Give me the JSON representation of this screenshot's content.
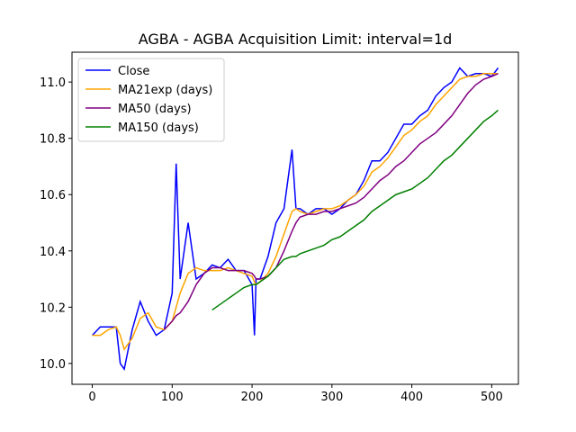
{
  "chart_data": {
    "type": "line",
    "title": "AGBA - AGBA Acquisition Limit: interval=1d",
    "x": [
      0,
      10,
      20,
      30,
      35,
      40,
      50,
      60,
      70,
      80,
      90,
      100,
      105,
      110,
      120,
      130,
      140,
      150,
      160,
      170,
      180,
      190,
      200,
      203,
      205,
      210,
      220,
      230,
      240,
      250,
      255,
      260,
      270,
      280,
      290,
      300,
      310,
      320,
      330,
      340,
      350,
      360,
      370,
      380,
      390,
      400,
      410,
      420,
      430,
      440,
      450,
      460,
      470,
      480,
      490,
      500,
      508
    ],
    "series": [
      {
        "name": "Close",
        "color": "#0000ff",
        "values": [
          10.1,
          10.13,
          10.13,
          10.13,
          10.0,
          9.98,
          10.12,
          10.22,
          10.15,
          10.1,
          10.12,
          10.25,
          10.71,
          10.3,
          10.5,
          10.3,
          10.32,
          10.35,
          10.34,
          10.37,
          10.33,
          10.33,
          10.28,
          10.1,
          10.3,
          10.3,
          10.38,
          10.5,
          10.55,
          10.76,
          10.55,
          10.55,
          10.53,
          10.55,
          10.55,
          10.53,
          10.55,
          10.58,
          10.6,
          10.65,
          10.72,
          10.72,
          10.75,
          10.8,
          10.85,
          10.85,
          10.88,
          10.9,
          10.95,
          10.98,
          11.0,
          11.05,
          11.02,
          11.03,
          11.03,
          11.02,
          11.05
        ]
      },
      {
        "name": "MA21exp (days)",
        "color": "#ffa500",
        "values": [
          10.1,
          10.1,
          10.12,
          10.13,
          10.1,
          10.05,
          10.09,
          10.16,
          10.18,
          10.13,
          10.12,
          10.15,
          10.2,
          10.25,
          10.32,
          10.34,
          10.33,
          10.33,
          10.33,
          10.34,
          10.33,
          10.32,
          10.31,
          10.29,
          10.28,
          10.29,
          10.32,
          10.38,
          10.46,
          10.54,
          10.55,
          10.54,
          10.53,
          10.54,
          10.55,
          10.55,
          10.56,
          10.58,
          10.6,
          10.63,
          10.68,
          10.7,
          10.73,
          10.77,
          10.81,
          10.83,
          10.86,
          10.88,
          10.92,
          10.95,
          10.98,
          11.01,
          11.02,
          11.02,
          11.03,
          11.03,
          11.03
        ]
      },
      {
        "name": "MA50 (days)",
        "color": "#800080",
        "values": [
          null,
          null,
          null,
          null,
          null,
          null,
          null,
          null,
          null,
          null,
          10.12,
          10.15,
          10.17,
          10.18,
          10.22,
          10.28,
          10.32,
          10.34,
          10.34,
          10.33,
          10.33,
          10.33,
          10.32,
          10.31,
          10.3,
          10.3,
          10.31,
          10.34,
          10.4,
          10.47,
          10.5,
          10.52,
          10.53,
          10.53,
          10.54,
          10.54,
          10.55,
          10.56,
          10.57,
          10.59,
          10.62,
          10.65,
          10.67,
          10.7,
          10.72,
          10.75,
          10.78,
          10.8,
          10.82,
          10.85,
          10.88,
          10.92,
          10.96,
          10.99,
          11.01,
          11.02,
          11.03
        ]
      },
      {
        "name": "MA150 (days)",
        "color": "#008000",
        "values": [
          null,
          null,
          null,
          null,
          null,
          null,
          null,
          null,
          null,
          null,
          null,
          null,
          null,
          null,
          null,
          null,
          null,
          10.19,
          10.21,
          10.23,
          10.25,
          10.27,
          10.28,
          10.28,
          10.28,
          10.29,
          10.31,
          10.34,
          10.37,
          10.38,
          10.38,
          10.39,
          10.4,
          10.41,
          10.42,
          10.44,
          10.45,
          10.47,
          10.49,
          10.51,
          10.54,
          10.56,
          10.58,
          10.6,
          10.61,
          10.62,
          10.64,
          10.66,
          10.69,
          10.72,
          10.74,
          10.77,
          10.8,
          10.83,
          10.86,
          10.88,
          10.9
        ]
      }
    ],
    "xlim": [
      -25.4,
      533.4
    ],
    "xticks": [
      0,
      100,
      200,
      300,
      400,
      500
    ],
    "ylim": [
      9.926,
      11.106
    ],
    "yticks": [
      {
        "value": 10,
        "label": "10.0"
      },
      10.2,
      10.4,
      10.6,
      10.8,
      {
        "value": 11,
        "label": "11.0"
      }
    ],
    "legend": "upper-left"
  }
}
